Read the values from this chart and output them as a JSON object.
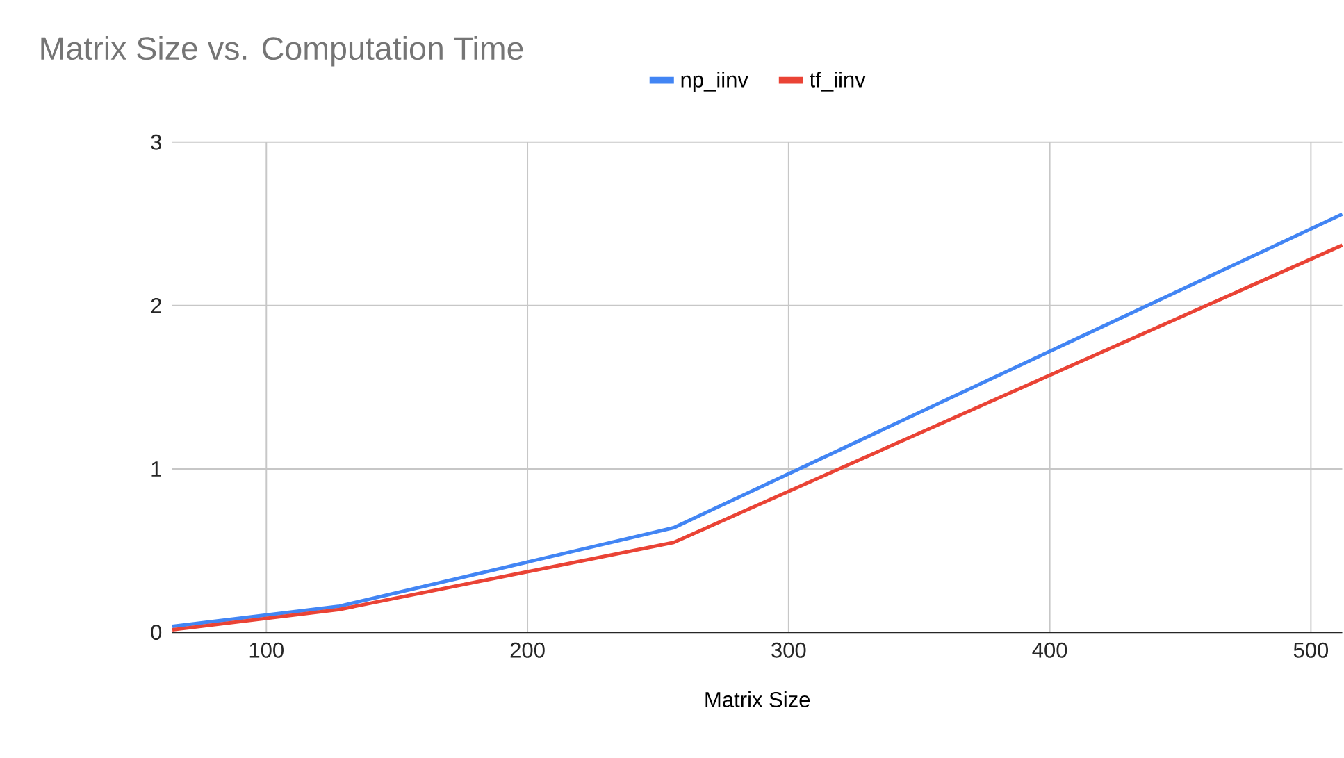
{
  "chart_data": {
    "type": "line",
    "title": "Matrix Size vs. Computation Time",
    "xlabel": "Matrix Size",
    "x": [
      64,
      128,
      256,
      512
    ],
    "series": [
      {
        "name": "np_iinv",
        "color": "#4285f4",
        "values": [
          0.036,
          0.16,
          0.64,
          2.56
        ]
      },
      {
        "name": "tf_iinv",
        "color": "#ea4335",
        "values": [
          0.015,
          0.14,
          0.55,
          2.37
        ]
      }
    ],
    "xlim": [
      64,
      512
    ],
    "ylim": [
      0,
      3
    ],
    "xticks": [
      100,
      200,
      300,
      400,
      500
    ],
    "yticks": [
      0,
      1,
      2,
      3
    ],
    "grid": true,
    "legend": "top",
    "marker": "none",
    "line_style": "solid"
  }
}
